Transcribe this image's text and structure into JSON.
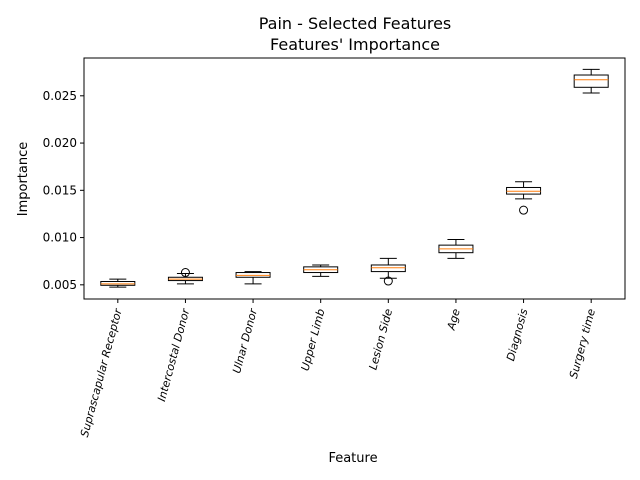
{
  "chart_data": {
    "type": "box",
    "title": "Pain - Selected Features",
    "subtitle": "Features' Importance",
    "xlabel": "Feature",
    "ylabel": "Importance",
    "ylim": [
      0.0035,
      0.029
    ],
    "yticks": [
      "0.005",
      "0.010",
      "0.015",
      "0.020",
      "0.025"
    ],
    "grid": false,
    "colors": {
      "box": "#000000",
      "median": "#ff7f0e"
    },
    "categories": [
      "Suprascapular Receptor",
      "Intercostal Donor",
      "Ulnar Donor",
      "Upper Limb",
      "Lesion Side",
      "Age",
      "Diagnosis",
      "Surgery time"
    ],
    "boxes": [
      {
        "whislo": 0.00475,
        "q1": 0.00495,
        "med": 0.0051,
        "q3": 0.00535,
        "whishi": 0.0056,
        "fliers": []
      },
      {
        "whislo": 0.0051,
        "q1": 0.00545,
        "med": 0.0056,
        "q3": 0.0058,
        "whishi": 0.0062,
        "fliers": [
          0.0063
        ]
      },
      {
        "whislo": 0.0051,
        "q1": 0.0058,
        "med": 0.006,
        "q3": 0.0063,
        "whishi": 0.0064,
        "fliers": []
      },
      {
        "whislo": 0.0059,
        "q1": 0.0063,
        "med": 0.0066,
        "q3": 0.0069,
        "whishi": 0.0071,
        "fliers": []
      },
      {
        "whislo": 0.0057,
        "q1": 0.0064,
        "med": 0.0068,
        "q3": 0.0071,
        "whishi": 0.0078,
        "fliers": [
          0.0054
        ]
      },
      {
        "whislo": 0.0078,
        "q1": 0.0084,
        "med": 0.0088,
        "q3": 0.0092,
        "whishi": 0.0098,
        "fliers": []
      },
      {
        "whislo": 0.0141,
        "q1": 0.0146,
        "med": 0.0149,
        "q3": 0.0153,
        "whishi": 0.0159,
        "fliers": [
          0.0129
        ]
      },
      {
        "whislo": 0.0253,
        "q1": 0.0259,
        "med": 0.0267,
        "q3": 0.0272,
        "whishi": 0.0278,
        "fliers": []
      }
    ]
  }
}
